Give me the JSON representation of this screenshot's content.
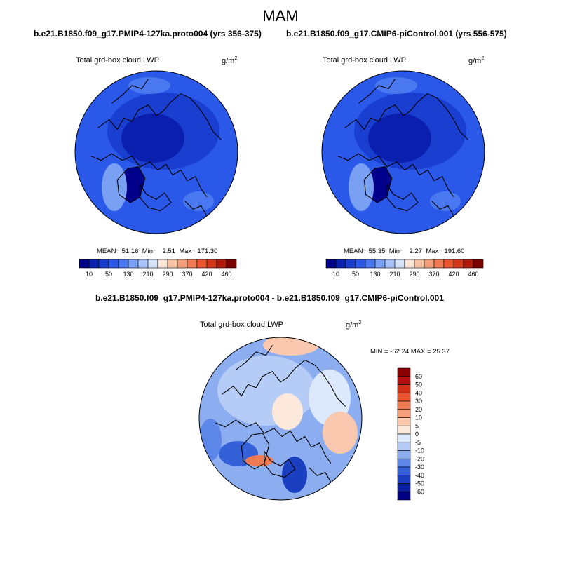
{
  "season": "MAM",
  "panels": [
    {
      "case": "b.e21.B1850.f09_g17.PMIP4-127ka.proto004 (yrs 356-375)",
      "variable": "Total grd-box cloud LWP",
      "units_base": "g/m",
      "units_exp": "2",
      "stats": {
        "mean_label": "MEAN=",
        "mean": "51.16",
        "min_label": "Min=",
        "min": "2.51",
        "max_label": "Max=",
        "max": "171.30"
      }
    },
    {
      "case": "b.e21.B1850.f09_g17.CMIP6-piControl.001 (yrs 556-575)",
      "variable": "Total grd-box cloud LWP",
      "units_base": "g/m",
      "units_exp": "2",
      "stats": {
        "mean_label": "MEAN=",
        "mean": "55.35",
        "min_label": "Min=",
        "min": "2.27",
        "max_label": "Max=",
        "max": "191.60"
      }
    }
  ],
  "abs_colorbar": {
    "labels": [
      "10",
      "50",
      "130",
      "210",
      "290",
      "370",
      "420",
      "460"
    ],
    "colors": [
      "#00008b",
      "#0a1fae",
      "#1a3fd0",
      "#2a58e8",
      "#4a78f0",
      "#7aa0f4",
      "#a8c4f8",
      "#d4e4fb",
      "#fde6d8",
      "#f9c2a4",
      "#f59f7a",
      "#f07a54",
      "#ea5530",
      "#d6361a",
      "#b01a0a",
      "#7a0000"
    ]
  },
  "diff": {
    "title": "b.e21.B1850.f09_g17.PMIP4-127ka.proto004 - b.e21.B1850.f09_g17.CMIP6-piControl.001",
    "variable": "Total grd-box cloud LWP",
    "units_base": "g/m",
    "units_exp": "2",
    "minmax": "MIN = -52.24 MAX =  25.37",
    "colorbar": {
      "labels": [
        "60",
        "50",
        "40",
        "30",
        "20",
        "10",
        "5",
        "0",
        "-5",
        "-10",
        "-20",
        "-30",
        "-40",
        "-50",
        "-60"
      ],
      "colors": [
        "#8b0000",
        "#b01010",
        "#d43018",
        "#ea5530",
        "#f07a54",
        "#f59f7a",
        "#f9c8ae",
        "#fde8dc",
        "#dce8fb",
        "#b4ccf6",
        "#8caef0",
        "#5c86e8",
        "#3460d8",
        "#1a3fc0",
        "#0a20a0",
        "#000080"
      ]
    }
  }
}
